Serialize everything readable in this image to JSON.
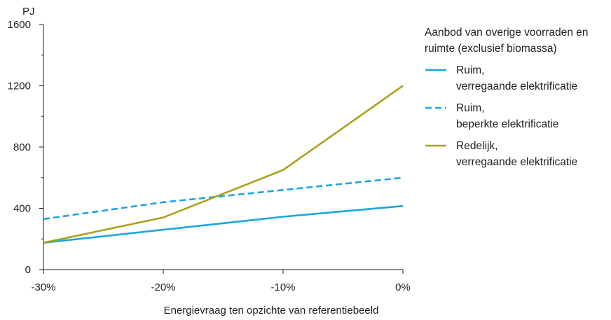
{
  "chart_data": {
    "type": "line",
    "title": "",
    "xlabel": "Energievraag ten opzichte van referentiebeeld",
    "ylabel": "PJ",
    "x": [
      "-30%",
      "-20%",
      "-10%",
      "0%"
    ],
    "ylim": [
      0,
      1600
    ],
    "yticks": [
      "0",
      "400",
      "800",
      "1200",
      "1600"
    ],
    "grid": false,
    "legend_position": "right",
    "legend_title": [
      "Aanbod van overige voorraden en",
      "ruimte (exclusief biomassa)"
    ],
    "series": [
      {
        "name": "Ruim, verregaande elektrificatie",
        "name_lines": [
          "Ruim,",
          "verregaande elektrificatie"
        ],
        "values": [
          175,
          260,
          345,
          415
        ],
        "color": "#1aa6df",
        "dash": "solid"
      },
      {
        "name": "Ruim, beperkte elektrificatie",
        "name_lines": [
          "Ruim,",
          "beperkte elektrificatie"
        ],
        "values": [
          330,
          440,
          520,
          600
        ],
        "color": "#1aa6df",
        "dash": "dashed"
      },
      {
        "name": "Redelijk, verregaande elektrificatie",
        "name_lines": [
          "Redelijk,",
          "verregaande elektrificatie"
        ],
        "values": [
          175,
          340,
          650,
          1200
        ],
        "color": "#a8a21a",
        "dash": "solid"
      }
    ]
  }
}
